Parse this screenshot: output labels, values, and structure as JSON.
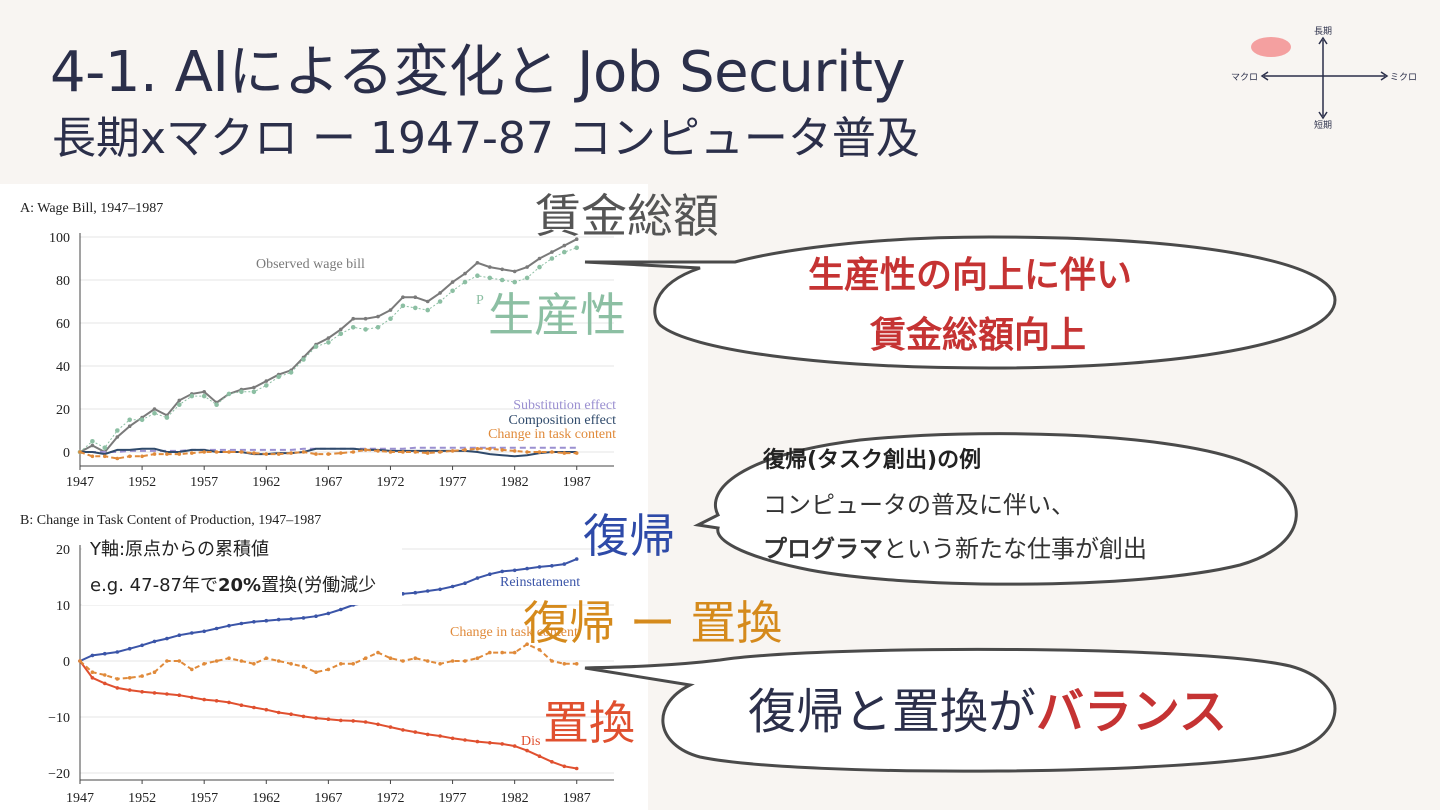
{
  "slide": {
    "title": "4-1. AIによる変化と Job Security",
    "subtitle": "長期xマクロ ー 1947-87 コンピュータ普及"
  },
  "quadrant": {
    "top": "長期",
    "bottom": "短期",
    "left": "マクロ",
    "right": "ミクロ",
    "marker_color": "#f4a0a0"
  },
  "overlay_labels": {
    "wage_bill": "賃金総額",
    "productivity": "生産性",
    "reinstatement": "復帰",
    "net": "復帰 ー 置換",
    "displacement": "置換"
  },
  "bubbles": {
    "top": {
      "line1": "生産性の向上に伴い",
      "line2": "賃金総額向上"
    },
    "middle": {
      "title": "復帰(タスク創出)の例",
      "line1": "コンピュータの普及に伴い、",
      "line2_bold": "プログラマ",
      "line2_rest": "という新たな仕事が創出"
    },
    "bottom": {
      "text": "復帰と置換が",
      "accent": "バランス"
    }
  },
  "note": {
    "line1": "Y軸:原点からの累積値",
    "line2_a": "e.g. 47-87年で",
    "line2_b": "20%",
    "line2_c": "置換(労働減少"
  },
  "colors": {
    "wage": "#7a7a7a",
    "productivity": "#8cbfa3",
    "substitution": "#9a8fd0",
    "composition": "#2f4a6b",
    "task": "#e08a3a",
    "reinstatement": "#3b55a8",
    "displacement": "#e0502f",
    "net": "#e08a3a"
  },
  "chart_data": [
    {
      "type": "line",
      "title": "A: Wage Bill, 1947–1987",
      "xticks": [
        "1947",
        "1952",
        "1957",
        "1962",
        "1967",
        "1972",
        "1977",
        "1982",
        "1987"
      ],
      "yticks": [
        "100",
        "80",
        "60",
        "40",
        "20",
        "0"
      ],
      "xlim": [
        1947,
        1990
      ],
      "ylim": [
        -5,
        100
      ],
      "x": [
        1947,
        1948,
        1949,
        1950,
        1951,
        1952,
        1953,
        1954,
        1955,
        1956,
        1957,
        1958,
        1959,
        1960,
        1961,
        1962,
        1963,
        1964,
        1965,
        1966,
        1967,
        1968,
        1969,
        1970,
        1971,
        1972,
        1973,
        1974,
        1975,
        1976,
        1977,
        1978,
        1979,
        1980,
        1981,
        1982,
        1983,
        1984,
        1985,
        1986,
        1987
      ],
      "series": [
        {
          "name": "Observed wage bill",
          "key": "wage",
          "values": [
            0,
            3,
            0,
            7,
            12,
            16,
            20,
            17,
            24,
            27,
            28,
            23,
            27,
            29,
            30,
            33,
            36,
            38,
            44,
            50,
            53,
            57,
            62,
            62,
            63,
            66,
            72,
            72,
            70,
            74,
            79,
            83,
            88,
            86,
            85,
            84,
            86,
            90,
            93,
            96,
            99
          ]
        },
        {
          "name": "P",
          "key": "productivity",
          "values": [
            0,
            5,
            2,
            10,
            15,
            15,
            18,
            16,
            22,
            26,
            26,
            22,
            27,
            28,
            28,
            31,
            35,
            37,
            43,
            49,
            51,
            55,
            58,
            57,
            58,
            62,
            68,
            67,
            66,
            70,
            75,
            79,
            82,
            81,
            80,
            79,
            81,
            86,
            90,
            93,
            95
          ]
        },
        {
          "name": "Substitution effect",
          "key": "substitution",
          "values": [
            0,
            0,
            0,
            0,
            0.5,
            0.5,
            0.5,
            0.5,
            0.5,
            1,
            1,
            1,
            1,
            1,
            1,
            1,
            1,
            1,
            1.5,
            1.5,
            1.5,
            1.5,
            1.5,
            1.5,
            1.5,
            1.5,
            1.5,
            2,
            2,
            2,
            2,
            2,
            2,
            2,
            2,
            2,
            2,
            2,
            2,
            2,
            2
          ]
        },
        {
          "name": "Composition effect",
          "key": "composition",
          "values": [
            0,
            0,
            -1,
            1,
            1,
            1.5,
            1.5,
            0,
            0,
            1,
            1,
            0,
            0,
            0,
            -1,
            -1,
            -0.5,
            -0.5,
            0,
            1.5,
            1.5,
            1.5,
            1.5,
            1,
            1,
            0.5,
            0.5,
            0.5,
            0.5,
            0.5,
            0.5,
            0.5,
            0,
            -1,
            -1.5,
            -2,
            -1.5,
            -0.5,
            0,
            0,
            0
          ]
        },
        {
          "name": "Change in task content",
          "key": "task",
          "values": [
            0,
            -2,
            -2,
            -3,
            -2,
            -2,
            -1,
            -1,
            -1,
            -0.5,
            0,
            0,
            0,
            0,
            -0.5,
            -1,
            -1,
            -0.5,
            0,
            -1,
            -1,
            -0.5,
            0,
            1,
            0.5,
            0,
            0,
            0,
            -0.5,
            0,
            0.5,
            1,
            1.5,
            1.5,
            1,
            0.5,
            0,
            0,
            0,
            -0.5,
            -0.5
          ]
        }
      ]
    },
    {
      "type": "line",
      "title": "B: Change in Task Content of Production, 1947–1987",
      "xticks": [
        "1947",
        "1952",
        "1957",
        "1962",
        "1967",
        "1972",
        "1977",
        "1982",
        "1987"
      ],
      "yticks": [
        "20",
        "10",
        "0",
        "−10",
        "−20"
      ],
      "xlim": [
        1947,
        1990
      ],
      "ylim": [
        -20,
        20
      ],
      "x": [
        1947,
        1948,
        1949,
        1950,
        1951,
        1952,
        1953,
        1954,
        1955,
        1956,
        1957,
        1958,
        1959,
        1960,
        1961,
        1962,
        1963,
        1964,
        1965,
        1966,
        1967,
        1968,
        1969,
        1970,
        1971,
        1972,
        1973,
        1974,
        1975,
        1976,
        1977,
        1978,
        1979,
        1980,
        1981,
        1982,
        1983,
        1984,
        1985,
        1986,
        1987
      ],
      "series": [
        {
          "name": "Reinstatement",
          "key": "reinstatement",
          "values": [
            0,
            1,
            1.3,
            1.6,
            2.2,
            2.8,
            3.5,
            4,
            4.6,
            5,
            5.3,
            5.8,
            6.3,
            6.7,
            7,
            7.2,
            7.4,
            7.5,
            7.7,
            8,
            8.5,
            9.2,
            10,
            10.4,
            11,
            11.3,
            12,
            12.2,
            12.5,
            12.8,
            13.3,
            13.9,
            14.8,
            15.5,
            16,
            16.2,
            16.5,
            16.8,
            17,
            17.3,
            18.2
          ]
        },
        {
          "name": "Displacement",
          "key": "displacement",
          "values": [
            0,
            -3,
            -4,
            -4.8,
            -5.2,
            -5.5,
            -5.7,
            -5.9,
            -6.1,
            -6.5,
            -6.9,
            -7.1,
            -7.4,
            -7.9,
            -8.3,
            -8.7,
            -9.2,
            -9.5,
            -9.9,
            -10.2,
            -10.4,
            -10.6,
            -10.7,
            -10.9,
            -11.3,
            -11.8,
            -12.3,
            -12.7,
            -13.1,
            -13.4,
            -13.8,
            -14.1,
            -14.4,
            -14.6,
            -14.8,
            -15.2,
            -16,
            -17,
            -18,
            -18.8,
            -19.2
          ]
        },
        {
          "name": "Change in task content",
          "key": "net",
          "values": [
            0,
            -2,
            -2.5,
            -3.2,
            -3,
            -2.7,
            -2,
            0,
            0,
            -1.5,
            -0.5,
            0,
            0.5,
            0,
            -0.5,
            0.5,
            0,
            -0.5,
            -1,
            -2,
            -1.5,
            -0.5,
            -0.5,
            0.5,
            1.5,
            0.5,
            0,
            0.5,
            0,
            -0.5,
            0,
            0,
            0.5,
            1.5,
            1.5,
            1.5,
            3,
            2,
            0,
            -0.5,
            -0.5
          ]
        }
      ],
      "labels": {
        "reinstatement": "Reinstatement",
        "net": "Change in task content",
        "displacement": "Dis"
      }
    }
  ]
}
